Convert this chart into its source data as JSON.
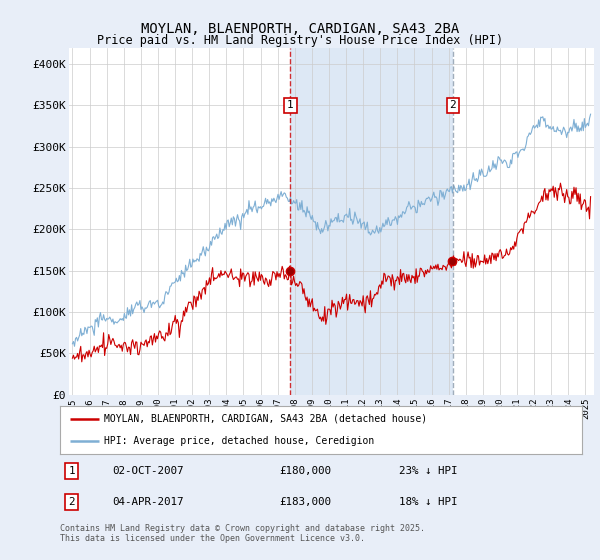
{
  "title": "MOYLAN, BLAENPORTH, CARDIGAN, SA43 2BA",
  "subtitle": "Price paid vs. HM Land Registry's House Price Index (HPI)",
  "ylabel_ticks": [
    "£0",
    "£50K",
    "£100K",
    "£150K",
    "£200K",
    "£250K",
    "£300K",
    "£350K",
    "£400K"
  ],
  "ytick_values": [
    0,
    50000,
    100000,
    150000,
    200000,
    250000,
    300000,
    350000,
    400000
  ],
  "ylim": [
    0,
    420000
  ],
  "xlim_start": 1994.8,
  "xlim_end": 2025.5,
  "xtick_years": [
    1995,
    1996,
    1997,
    1998,
    1999,
    2000,
    2001,
    2002,
    2003,
    2004,
    2005,
    2006,
    2007,
    2008,
    2009,
    2010,
    2011,
    2012,
    2013,
    2014,
    2015,
    2016,
    2017,
    2018,
    2019,
    2020,
    2021,
    2022,
    2023,
    2024,
    2025
  ],
  "hpi_color": "#7fafd4",
  "price_color": "#cc0000",
  "marker1_x": 2007.75,
  "marker2_x": 2017.25,
  "marker1_vline_color": "#cc0000",
  "marker2_vline_color": "#8899aa",
  "shade_color": "#dde8f5",
  "legend_line1": "MOYLAN, BLAENPORTH, CARDIGAN, SA43 2BA (detached house)",
  "legend_line2": "HPI: Average price, detached house, Ceredigion",
  "footnote": "Contains HM Land Registry data © Crown copyright and database right 2025.\nThis data is licensed under the Open Government Licence v3.0.",
  "background_color": "#e8eef8",
  "plot_bg_color": "#ffffff",
  "grid_color": "#cccccc",
  "title_fontsize": 10,
  "subtitle_fontsize": 8.5
}
